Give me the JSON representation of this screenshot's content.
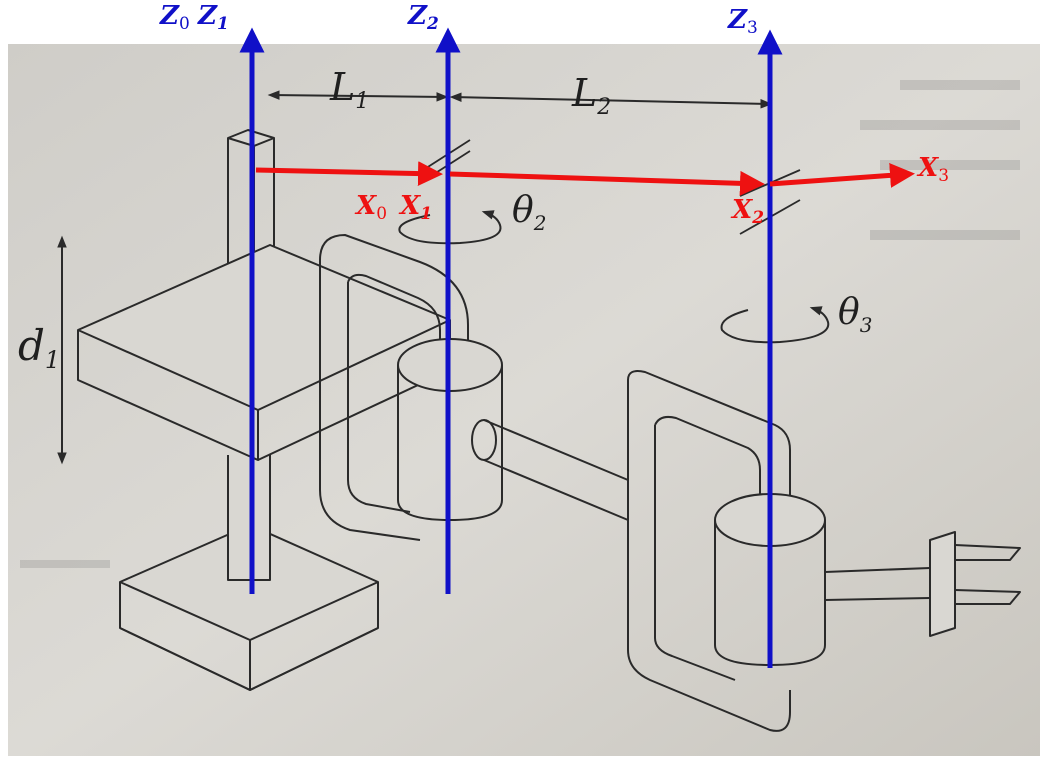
{
  "colors": {
    "z_axis": "#1010c8",
    "x_axis": "#ee1111",
    "ink": "#2a2a2a",
    "paper": "#d6d4cf",
    "paper_shade": "#bdbab3",
    "border": "#f4f4f4"
  },
  "labels": {
    "z0": "Z",
    "z0_sub": "0",
    "z1": "Z",
    "z1_sub": "1",
    "z2": "Z",
    "z2_sub": "2",
    "z3": "Z",
    "z3_sub": "3",
    "x0": "X",
    "x0_sub": "0",
    "x1": "X",
    "x1_sub": "1",
    "x2": "X",
    "x2_sub": "2",
    "x3": "X",
    "x3_sub": "3",
    "l1": "L",
    "l1_sub": "1",
    "l2": "L",
    "l2_sub": "2",
    "d1": "d",
    "d1_sub": "1",
    "theta2": "θ",
    "theta2_sub": "2",
    "theta3": "θ",
    "theta3_sub": "3"
  }
}
